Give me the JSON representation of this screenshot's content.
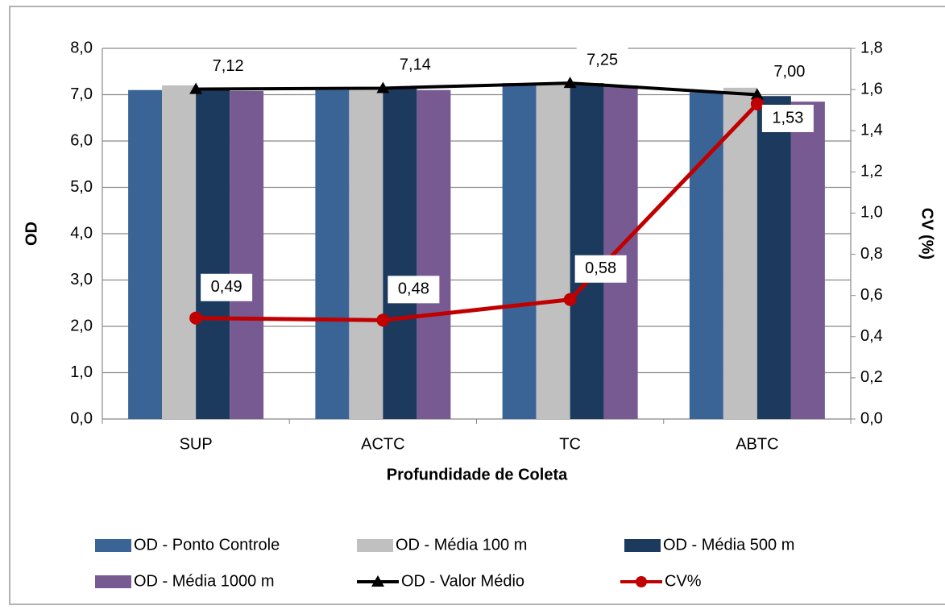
{
  "chart_data": {
    "type": "bar",
    "x_label": "Profundidade de Coleta",
    "y_label": "OD",
    "y2_label": "CV (%)",
    "categories": [
      "SUP",
      "ACTC",
      "TC",
      "ABTC"
    ],
    "ylim": [
      0,
      8
    ],
    "yticks": [
      {
        "value": 0,
        "label": "0,0"
      },
      {
        "value": 1,
        "label": "1,0"
      },
      {
        "value": 2,
        "label": "2,0"
      },
      {
        "value": 3,
        "label": "3,0"
      },
      {
        "value": 4,
        "label": "4,0"
      },
      {
        "value": 5,
        "label": "5,0"
      },
      {
        "value": 6,
        "label": "6,0"
      },
      {
        "value": 7,
        "label": "7,0"
      },
      {
        "value": 8,
        "label": "8,0"
      }
    ],
    "y2lim": [
      0,
      1.8
    ],
    "y2ticks": [
      {
        "value": 0,
        "label": "0,0"
      },
      {
        "value": 0.2,
        "label": "0,2"
      },
      {
        "value": 0.4,
        "label": "0,4"
      },
      {
        "value": 0.6,
        "label": "0,6"
      },
      {
        "value": 0.8,
        "label": "0,8"
      },
      {
        "value": 1,
        "label": "1,0"
      },
      {
        "value": 1.2,
        "label": "1,2"
      },
      {
        "value": 1.4,
        "label": "1,4"
      },
      {
        "value": 1.6,
        "label": "1,6"
      },
      {
        "value": 1.8,
        "label": "1,8"
      }
    ],
    "grid": true,
    "series": [
      {
        "name": "OD - Ponto Controle",
        "type": "bar",
        "color": "#3b6496",
        "values": [
          7.1,
          7.1,
          7.25,
          7.05
        ]
      },
      {
        "name": "OD - Média 100 m",
        "type": "bar",
        "color": "#c0c0c0",
        "values": [
          7.2,
          7.1,
          7.25,
          7.15
        ]
      },
      {
        "name": "OD - Média 500 m",
        "type": "bar",
        "color": "#1c3a5e",
        "values": [
          7.1,
          7.15,
          7.25,
          6.97
        ]
      },
      {
        "name": "OD - Média 1000 m",
        "type": "bar",
        "color": "#785a92",
        "values": [
          7.08,
          7.1,
          7.2,
          6.85
        ]
      },
      {
        "name": "OD - Valor Médio",
        "type": "line",
        "marker": "triangle",
        "color": "#000000",
        "values": [
          7.12,
          7.14,
          7.25,
          7.0
        ],
        "value_labels": [
          "7,12",
          "7,14",
          "7,25",
          "7,00"
        ]
      },
      {
        "name": "CV%",
        "type": "line",
        "marker": "circle",
        "axis": "y2",
        "color": "#c00000",
        "values": [
          0.49,
          0.48,
          0.58,
          1.53
        ],
        "value_labels": [
          "0,49",
          "0,48",
          "0,58",
          "1,53"
        ]
      }
    ]
  }
}
